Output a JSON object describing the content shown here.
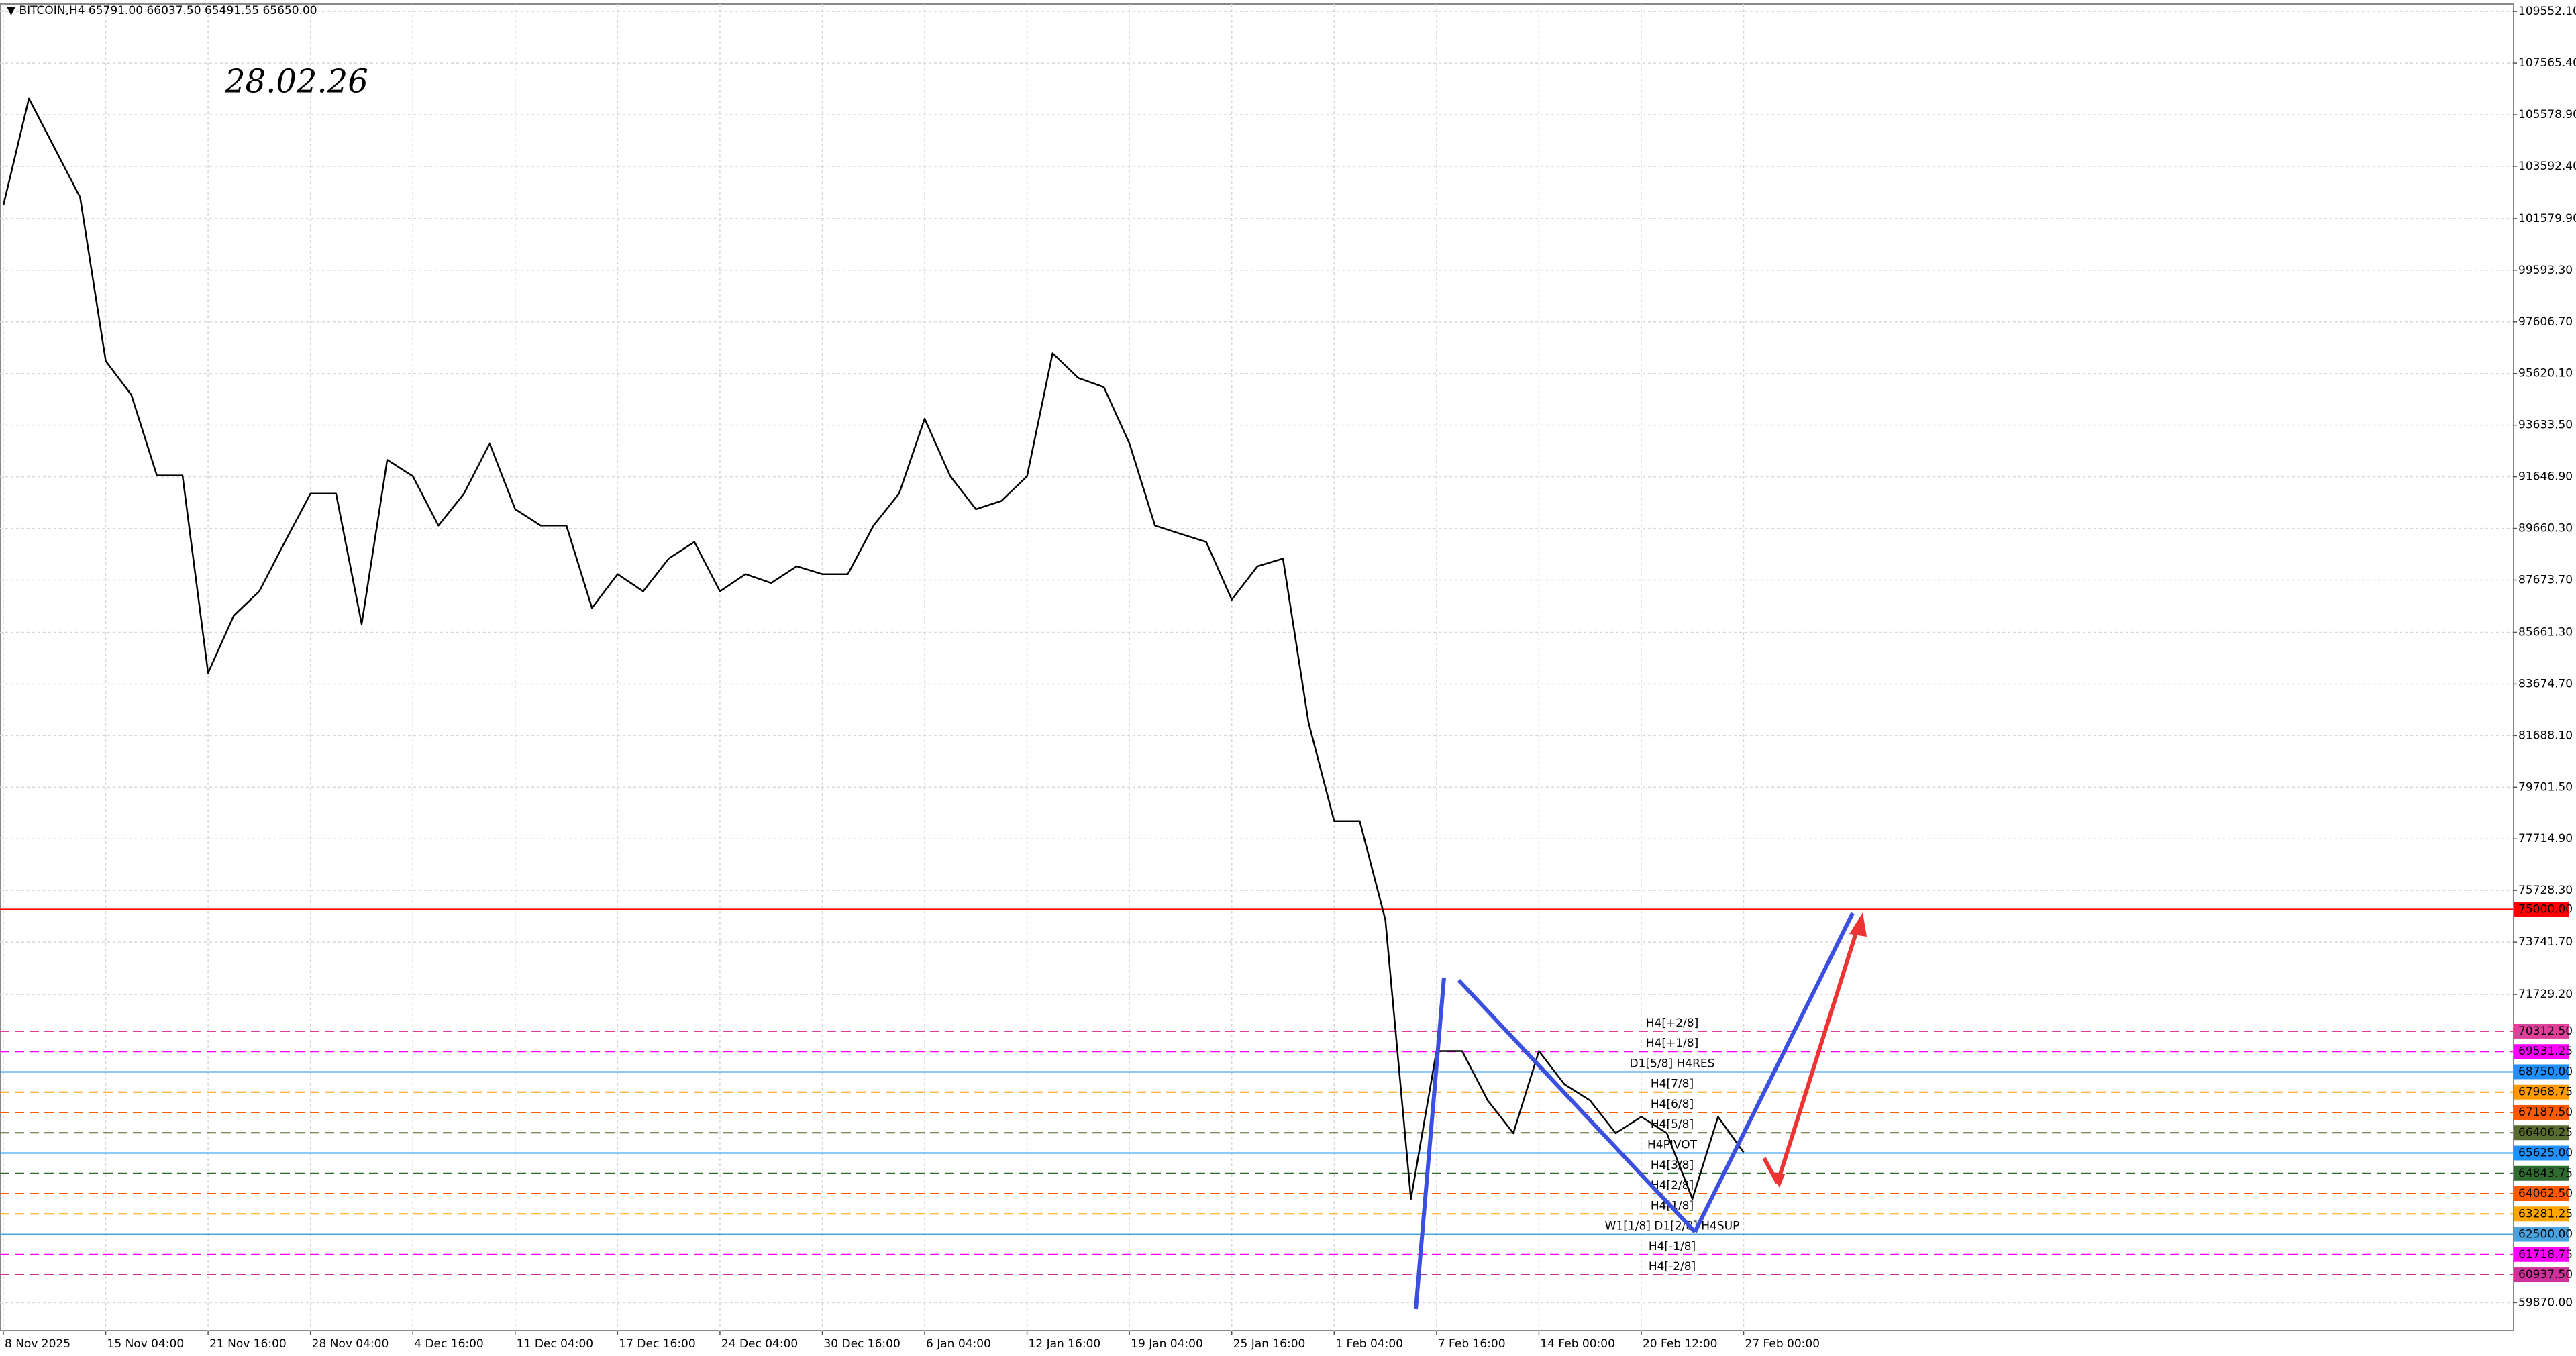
{
  "chart_data": {
    "type": "line",
    "header": "▼ BITCOIN,H4  65791.00 66037.50 65491.55 65650.00",
    "title": "28.02.26",
    "color": "#000000",
    "grid": true,
    "ylim": [
      58796,
      109994
    ],
    "yticks": [
      {
        "value": 109552.1,
        "label": "109552.10"
      },
      {
        "value": 107565.4,
        "label": "107565.40"
      },
      {
        "value": 105578.9,
        "label": "105578.90"
      },
      {
        "value": 103592.4,
        "label": "103592.40"
      },
      {
        "value": 101579.9,
        "label": "101579.90"
      },
      {
        "value": 99593.3,
        "label": "99593.30"
      },
      {
        "value": 97606.7,
        "label": "97606.70"
      },
      {
        "value": 95620.1,
        "label": "95620.10"
      },
      {
        "value": 93633.5,
        "label": "93633.50"
      },
      {
        "value": 91646.9,
        "label": "91646.90"
      },
      {
        "value": 89660.3,
        "label": "89660.30"
      },
      {
        "value": 87673.7,
        "label": "87673.70"
      },
      {
        "value": 85661.3,
        "label": "85661.30"
      },
      {
        "value": 83674.7,
        "label": "83674.70"
      },
      {
        "value": 81688.1,
        "label": "81688.10"
      },
      {
        "value": 79701.5,
        "label": "79701.50"
      },
      {
        "value": 77714.9,
        "label": "77714.90"
      },
      {
        "value": 75728.3,
        "label": "75728.30"
      },
      {
        "value": 73741.7,
        "label": "73741.70"
      },
      {
        "value": 71729.2,
        "label": "71729.20"
      },
      {
        "value": 59870,
        "label": "59870.00"
      }
    ],
    "categories": [
      "8 Nov 2025",
      null,
      null,
      null,
      "15 Nov 04:00",
      null,
      null,
      null,
      "21 Nov 16:00",
      null,
      null,
      null,
      "28 Nov 04:00",
      null,
      null,
      null,
      "4 Dec 16:00",
      null,
      null,
      null,
      "11 Dec 04:00",
      null,
      null,
      null,
      "17 Dec 16:00",
      null,
      null,
      null,
      "24 Dec 04:00",
      null,
      null,
      null,
      "30 Dec 16:00",
      null,
      null,
      null,
      "6 Jan 04:00",
      null,
      null,
      null,
      "12 Jan 16:00",
      null,
      null,
      null,
      "19 Jan 04:00",
      null,
      null,
      null,
      "25 Jan 16:00",
      null,
      null,
      null,
      "1 Feb 04:00",
      null,
      null,
      null,
      "7 Feb 16:00",
      null,
      null,
      null,
      "14 Feb 00:00",
      null,
      null,
      null,
      "20 Feb 12:00",
      null,
      null,
      null,
      "27 Feb 00:00"
    ],
    "values": [
      102094,
      106200,
      104300,
      102400,
      96100,
      94800,
      91700,
      91700,
      84100,
      86300,
      87240,
      89140,
      91000,
      91000,
      85980,
      92300,
      91670,
      89770,
      91000,
      92930,
      90400,
      89770,
      89770,
      86600,
      87900,
      87240,
      88500,
      89140,
      87240,
      87900,
      87560,
      88200,
      87900,
      87900,
      89770,
      91000,
      93880,
      91670,
      90400,
      90720,
      91670,
      96400,
      95450,
      95100,
      92930,
      89770,
      89450,
      89140,
      86920,
      88200,
      88500,
      82190,
      78400,
      78400,
      74600,
      63860,
      69550,
      69550,
      67650,
      66390,
      69550,
      68270,
      67650,
      66390,
      67020,
      66390,
      63860,
      67020,
      65650
    ],
    "levels": [
      {
        "value": 75000,
        "label": "75000.00",
        "color": "#ff0000",
        "dashed": false
      },
      {
        "value": 70312.5,
        "label": "70312.50",
        "name": "H4[+2/8]",
        "color": "#e0409a",
        "dashed": true
      },
      {
        "value": 69531.25,
        "label": "69531.25",
        "name": "H4[+1/8]",
        "color": "#ff00ff",
        "dashed": true
      },
      {
        "value": 68750,
        "label": "68750.00",
        "name": "D1[5/8] H4RES",
        "color": "#1e90ff",
        "dashed": false
      },
      {
        "value": 67968.75,
        "label": "67968.75",
        "name": "H4[7/8]",
        "color": "#ff9900",
        "dashed": true
      },
      {
        "value": 67187.5,
        "label": "67187.50",
        "name": "H4[6/8]",
        "color": "#ff5a00",
        "dashed": true
      },
      {
        "value": 66406.25,
        "label": "66406.25",
        "name": "H4[5/8]",
        "color": "#556b2f",
        "dashed": true
      },
      {
        "value": 65625,
        "label": "65625.00",
        "name": "H4PIVOT",
        "color": "#1e90ff",
        "dashed": false
      },
      {
        "value": 64843.75,
        "label": "64843.75",
        "name": "H4[3/8]",
        "color": "#2e6b2e",
        "dashed": true
      },
      {
        "value": 64062.5,
        "label": "64062.50",
        "name": "H4[2/8]",
        "color": "#ff5a00",
        "dashed": true
      },
      {
        "value": 63281.25,
        "label": "63281.25",
        "name": "H4[1/8]",
        "color": "#ffa500",
        "dashed": true
      },
      {
        "value": 62500,
        "label": "62500.00",
        "name": "W1[1/8] D1[2/8] H4SUP",
        "color": "#4aa3df",
        "dashed": false
      },
      {
        "value": 61718.75,
        "label": "61718.75",
        "name": "H4[-1/8]",
        "color": "#ff00ff",
        "dashed": true
      },
      {
        "value": 60937.5,
        "label": "60937.50",
        "name": "H4[-2/8]",
        "color": "#d0309a",
        "dashed": true
      }
    ]
  }
}
